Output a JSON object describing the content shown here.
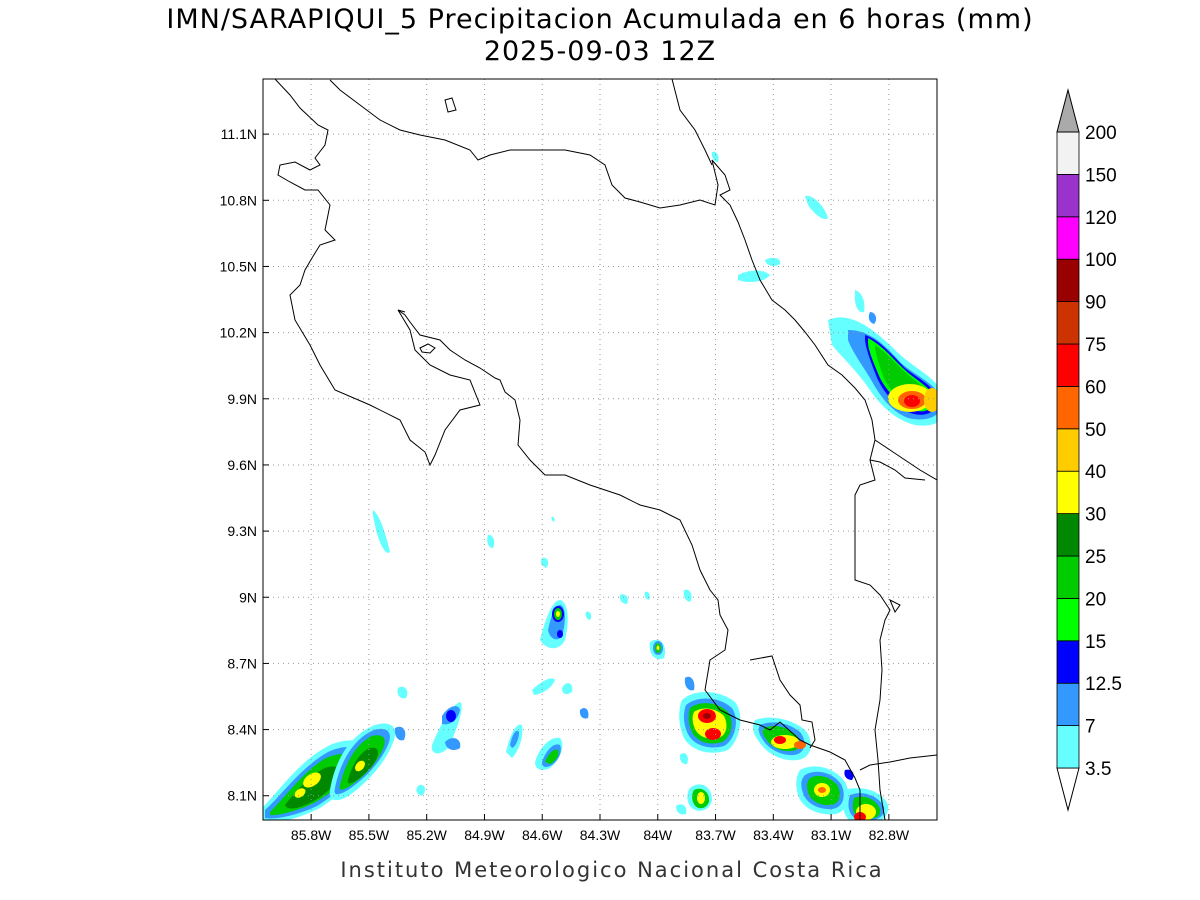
{
  "title_line1": "IMN/SARAPIQUI_5 Precipitacion Acumulada en 6 horas (mm)",
  "title_line2": "2025-09-03 12Z",
  "footer": "Instituto Meteorologico Nacional Costa Rica",
  "map": {
    "lon_range": [
      -86.05,
      -82.55
    ],
    "lat_range": [
      7.99,
      11.35
    ],
    "lon_ticks": [
      {
        "value": -85.8,
        "label": "85.8W"
      },
      {
        "value": -85.5,
        "label": "85.5W"
      },
      {
        "value": -85.2,
        "label": "85.2W"
      },
      {
        "value": -84.9,
        "label": "84.9W"
      },
      {
        "value": -84.6,
        "label": "84.6W"
      },
      {
        "value": -84.3,
        "label": "84.3W"
      },
      {
        "value": -84.0,
        "label": "84W"
      },
      {
        "value": -83.7,
        "label": "83.7W"
      },
      {
        "value": -83.4,
        "label": "83.4W"
      },
      {
        "value": -83.1,
        "label": "83.1W"
      },
      {
        "value": -82.8,
        "label": "82.8W"
      }
    ],
    "lat_ticks": [
      {
        "value": 11.1,
        "label": "11.1N"
      },
      {
        "value": 10.8,
        "label": "10.8N"
      },
      {
        "value": 10.5,
        "label": "10.5N"
      },
      {
        "value": 10.2,
        "label": "10.2N"
      },
      {
        "value": 9.9,
        "label": "9.9N"
      },
      {
        "value": 9.6,
        "label": "9.6N"
      },
      {
        "value": 9.3,
        "label": "9.3N"
      },
      {
        "value": 9.0,
        "label": "9N"
      },
      {
        "value": 8.7,
        "label": "8.7N"
      },
      {
        "value": 8.4,
        "label": "8.4N"
      },
      {
        "value": 8.1,
        "label": "8.1N"
      }
    ],
    "grid": true
  },
  "colorbar": {
    "levels": [
      "3.5",
      "7",
      "12.5",
      "15",
      "20",
      "25",
      "30",
      "40",
      "50",
      "60",
      "75",
      "90",
      "100",
      "120",
      "150",
      "200"
    ],
    "colors": [
      "#ffffff",
      "#66ffff",
      "#3399ff",
      "#0000ff",
      "#00ff00",
      "#00cc00",
      "#008800",
      "#ffff00",
      "#ffcc00",
      "#ff6600",
      "#ff0000",
      "#cc3300",
      "#990000",
      "#ff00ff",
      "#9933cc",
      "#f2f2f2",
      "#aaaaaa"
    ]
  },
  "cells": [
    {
      "lon": -82.7,
      "lat": 9.9,
      "max": 60
    },
    {
      "lon": -82.85,
      "lat": 9.95,
      "max": 40
    },
    {
      "lon": -83.66,
      "lat": 8.44,
      "max": 75
    },
    {
      "lon": -83.32,
      "lat": 8.37,
      "max": 60
    },
    {
      "lon": -83.05,
      "lat": 8.14,
      "max": 40
    },
    {
      "lon": -82.83,
      "lat": 8.05,
      "max": 60
    },
    {
      "lon": -85.77,
      "lat": 8.15,
      "max": 40
    },
    {
      "lon": -85.5,
      "lat": 8.3,
      "max": 30
    },
    {
      "lon": -84.48,
      "lat": 8.9,
      "max": 40
    },
    {
      "lon": -83.72,
      "lat": 8.1,
      "max": 30
    },
    {
      "lon": -84.46,
      "lat": 8.3,
      "max": 25
    },
    {
      "lon": -83.96,
      "lat": 8.78,
      "max": 20
    },
    {
      "lon": -85.05,
      "lat": 8.45,
      "max": 15
    }
  ]
}
